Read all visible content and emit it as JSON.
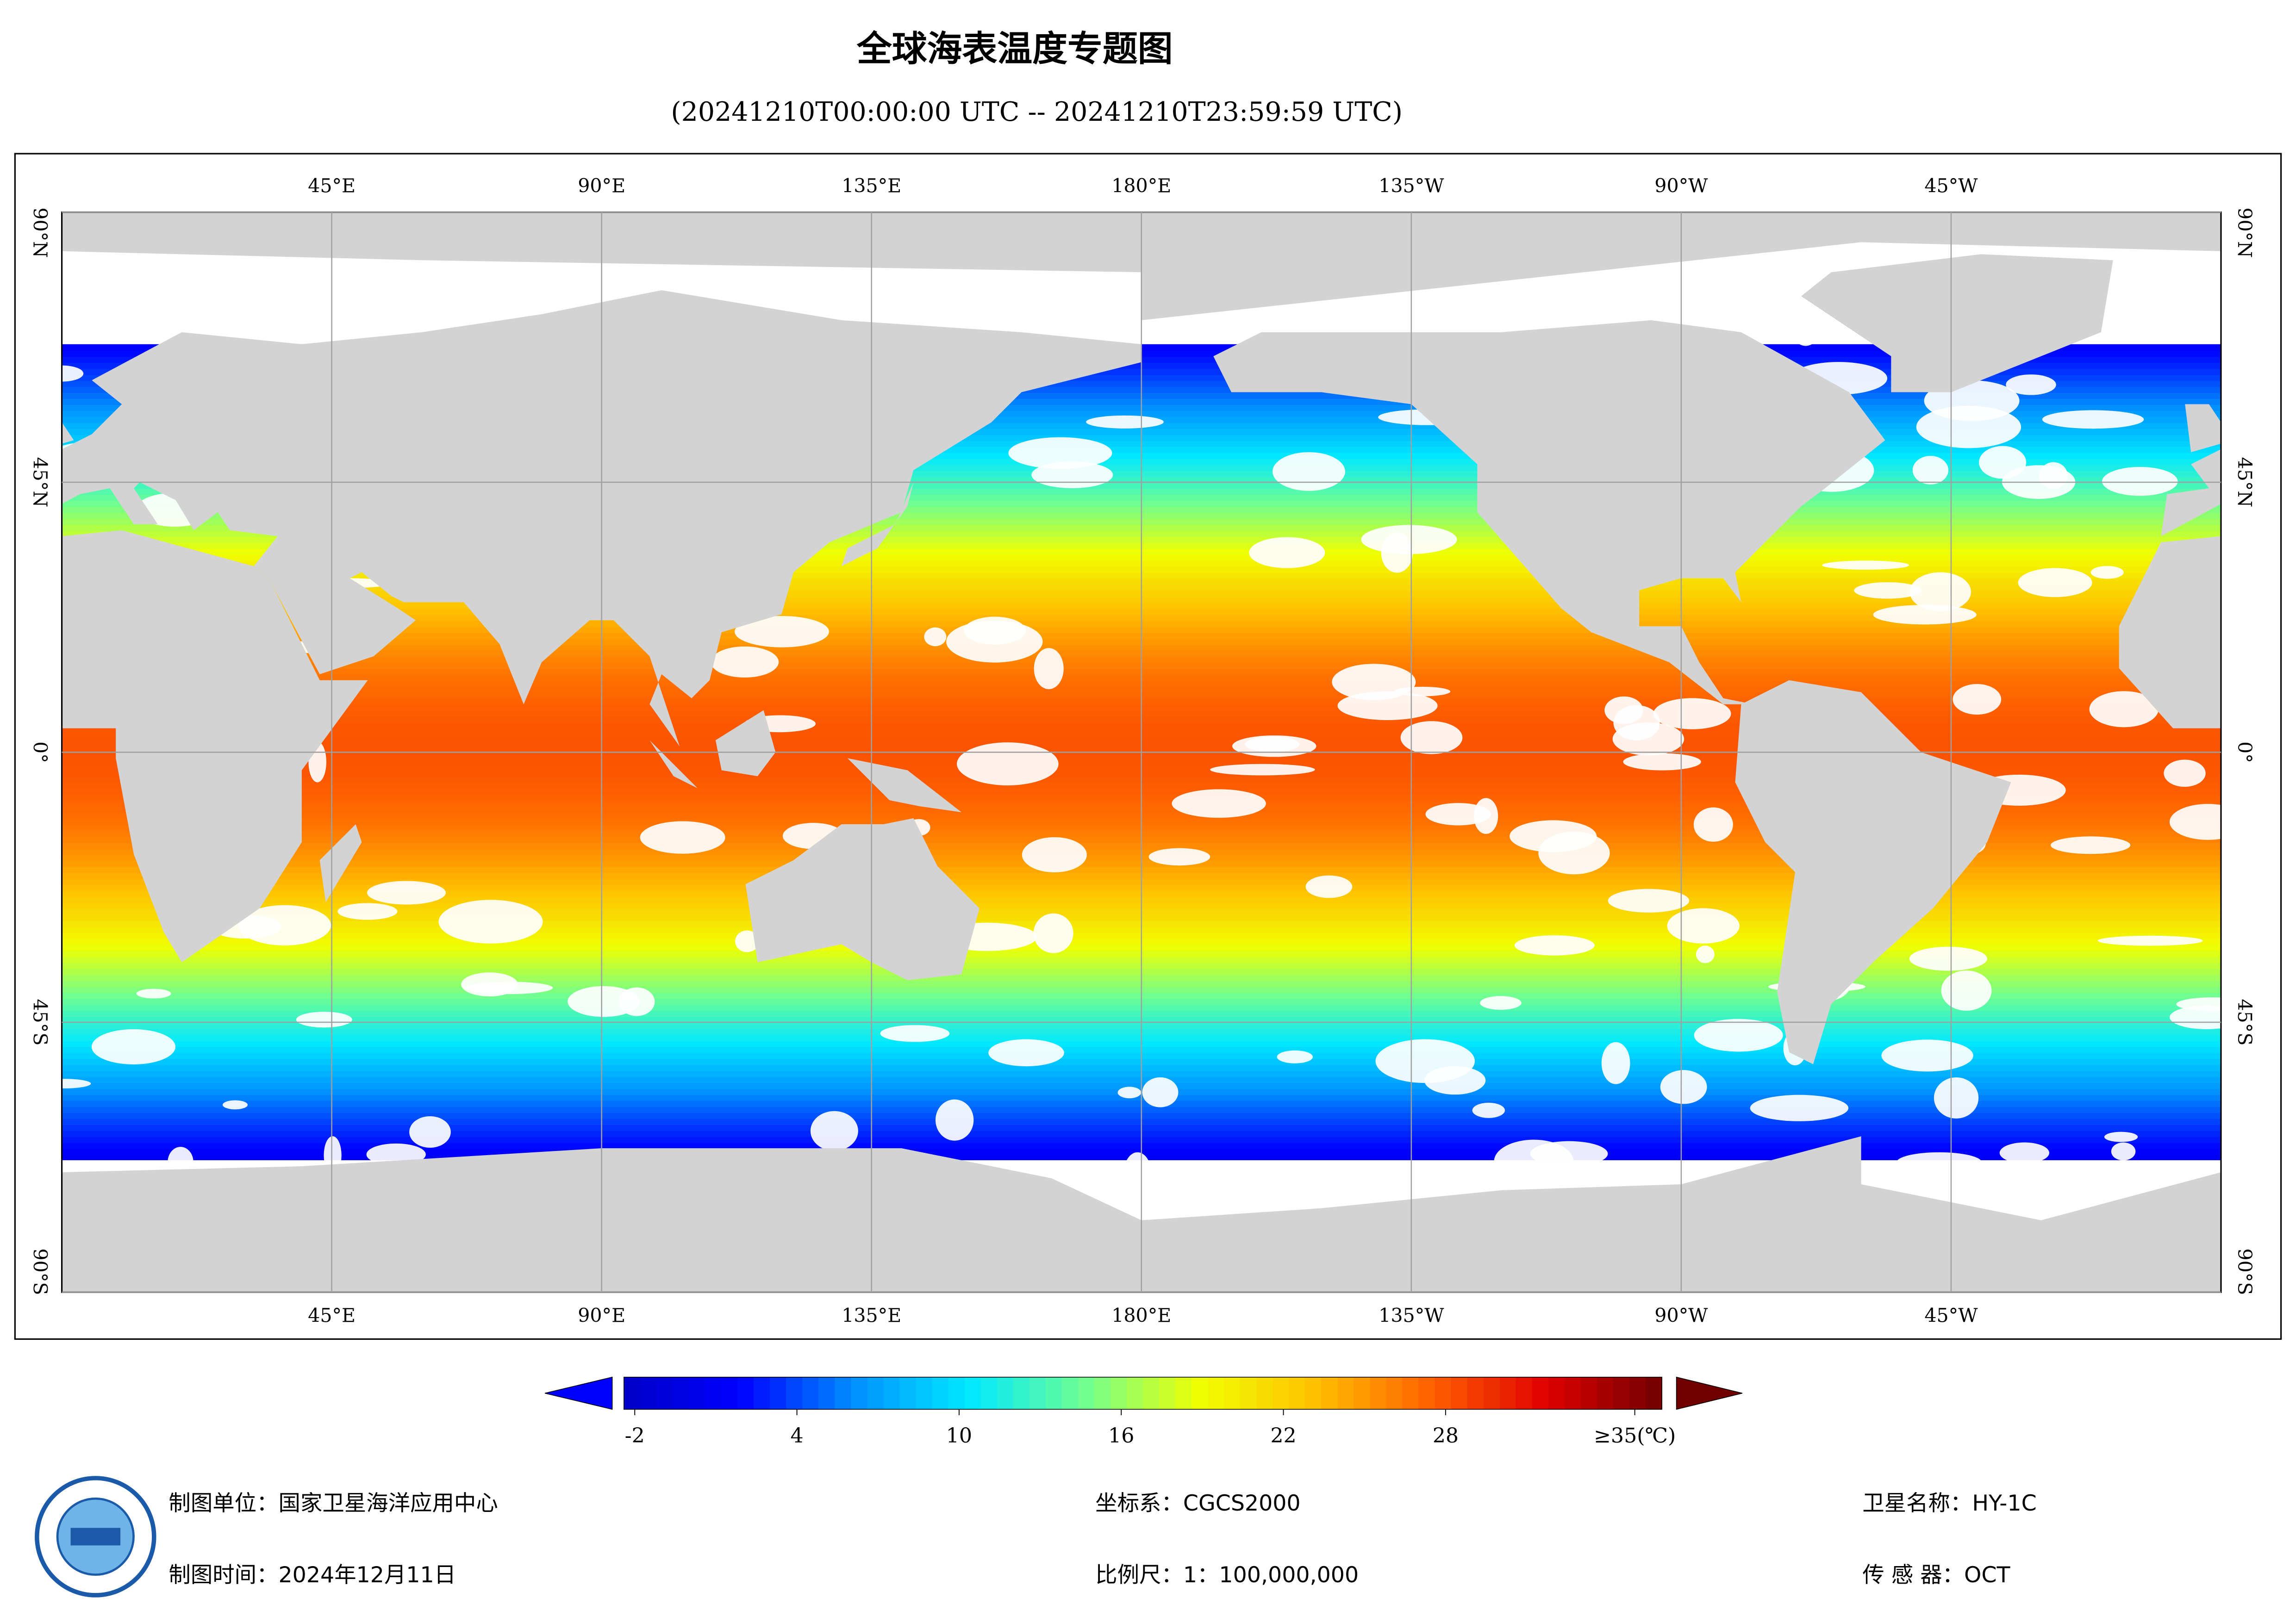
{
  "title": "全球海表温度专题图",
  "subtitle": "(20241210T00:00:00 UTC -- 20241210T23:59:59 UTC)",
  "map": {
    "lonlim": [
      0,
      360
    ],
    "latlim": [
      -90,
      90
    ],
    "grid": true,
    "lonticks": [
      {
        "value": 45,
        "label": "45°E"
      },
      {
        "value": 90,
        "label": "90°E"
      },
      {
        "value": 135,
        "label": "135°E"
      },
      {
        "value": 180,
        "label": "180°E"
      },
      {
        "value": 225,
        "label": "135°W"
      },
      {
        "value": 270,
        "label": "90°W"
      },
      {
        "value": 315,
        "label": "45°W"
      }
    ],
    "latticks": [
      {
        "value": 90,
        "label": "90°N"
      },
      {
        "value": 45,
        "label": "45°N"
      },
      {
        "value": 0,
        "label": "0°"
      },
      {
        "value": -45,
        "label": "45°S"
      },
      {
        "value": -90,
        "label": "90°S"
      }
    ],
    "colorbar": {
      "clim": [
        -2.4,
        36
      ],
      "ticks": [
        -2,
        4,
        10,
        16,
        22,
        28,
        {
          "value": 35,
          "label": "≥35(℃)"
        }
      ],
      "colors": [
        "#0000c8",
        "#0000ff",
        "#0090ff",
        "#00e8ff",
        "#70ff90",
        "#f0ff00",
        "#ffc000",
        "#ff6000",
        "#e00000",
        "#700000"
      ]
    }
  },
  "footer": {
    "unit": "制图单位：国家卫星海洋应用中心",
    "date": "制图时间：2024年12月11日",
    "crs": "坐标系：CGCS2000",
    "scale": "比例尺：1：100,000,000",
    "satellite": "卫星名称：HY-1C",
    "sensor": "传 感 器：OCT"
  }
}
